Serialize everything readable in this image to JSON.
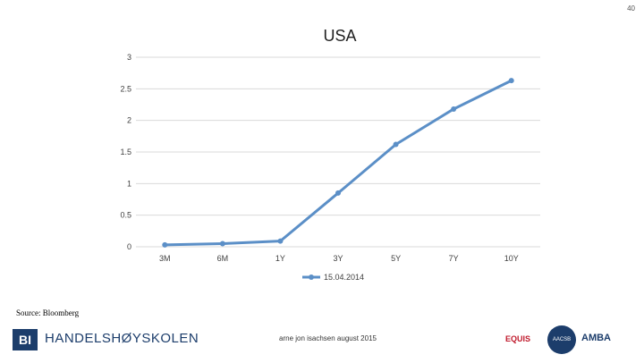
{
  "page_number": "40",
  "source": "Source: Bloomberg",
  "footer": {
    "logo_mark": "BI",
    "logo_name": "HANDELSHØYSKOLEN",
    "credit": "arne jon isachsen august 2015",
    "accreditations": [
      "EQUIS",
      "AACSB",
      "AMBA"
    ]
  },
  "colors": {
    "series": "#5b8fc7",
    "grid": "#d9d9d9",
    "brand": "#1c3d6b"
  },
  "chart_data": {
    "type": "line",
    "title": "USA",
    "categories": [
      "3M",
      "6M",
      "1Y",
      "3Y",
      "5Y",
      "7Y",
      "10Y"
    ],
    "series": [
      {
        "name": "15.04.2014",
        "values": [
          0.03,
          0.05,
          0.09,
          0.85,
          1.62,
          2.18,
          2.63
        ]
      }
    ],
    "y_ticks": [
      "3",
      "2.5",
      "2",
      "1.5",
      "1",
      "0.5",
      "0"
    ],
    "ylim": [
      0,
      3
    ],
    "grid": true,
    "legend_position": "bottom"
  }
}
